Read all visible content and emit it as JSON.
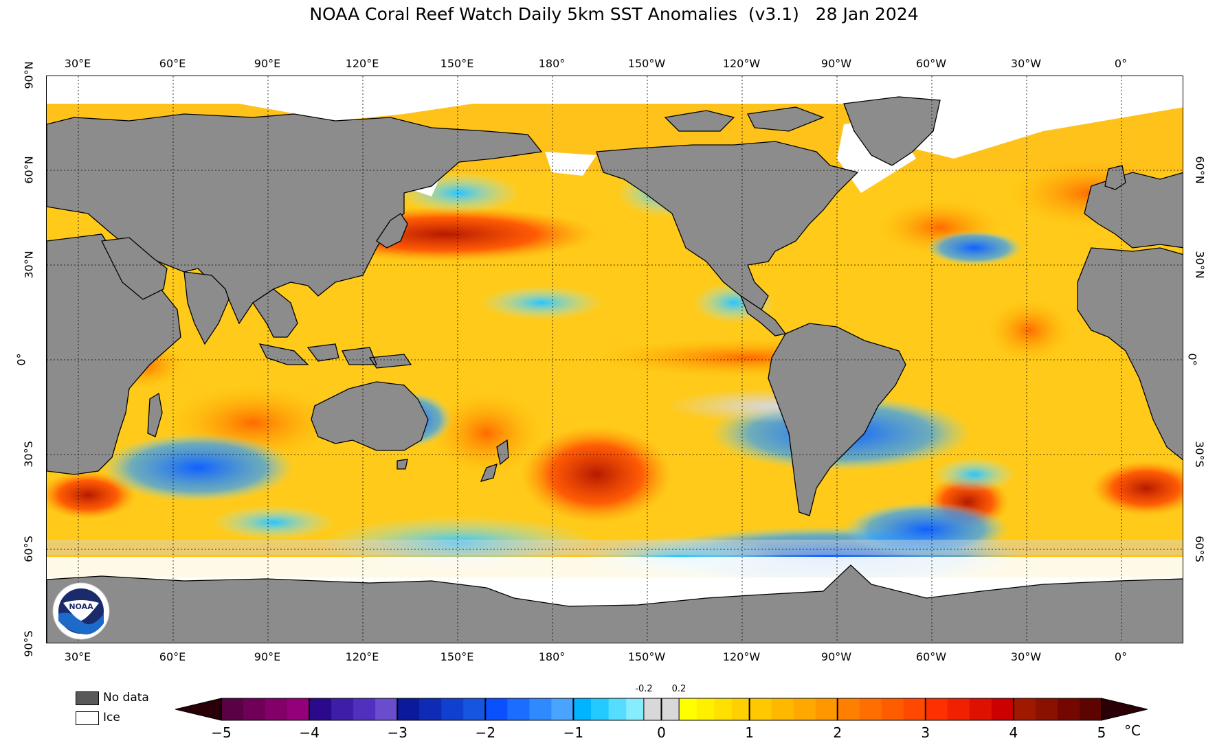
{
  "title": "NOAA Coral Reef Watch Daily 5km SST Anomalies  (v3.1)   28 Jan 2024",
  "map": {
    "longitude_labels": [
      "30°E",
      "60°E",
      "90°E",
      "120°E",
      "150°E",
      "180°",
      "150°W",
      "120°W",
      "90°W",
      "60°W",
      "30°W",
      "0°"
    ],
    "latitude_labels_left": [
      "90°N",
      "60°N",
      "30°N",
      "0°",
      "30°S",
      "60°S",
      "90°S"
    ],
    "latitude_labels_right": [
      "60°N",
      "30°N",
      "0°",
      "30°S",
      "60°S"
    ],
    "land_color": "#8c8c8c",
    "ice_color": "#ffffff",
    "logo": "noaa-logo"
  },
  "legend": {
    "no_data_label": "No data",
    "no_data_color": "#595959",
    "ice_label": "Ice",
    "ice_color": "#ffffff"
  },
  "colorbar": {
    "unit": "°C",
    "tick_labels": [
      "−5",
      "−4",
      "−3",
      "−2",
      "−1",
      "0",
      "1",
      "2",
      "3",
      "4",
      "5"
    ],
    "small_labels": [
      "-0.2",
      "0.2"
    ],
    "min_arrow_color": "#2a0008",
    "max_arrow_color": "#2a0006",
    "segments": [
      {
        "from": -5,
        "to": -4,
        "colors": [
          "#5a0045",
          "#6e0058",
          "#820068",
          "#94007a"
        ]
      },
      {
        "from": -4,
        "to": -3,
        "colors": [
          "#2a0a8a",
          "#3c1ea8",
          "#5030bf",
          "#6a4dcc"
        ]
      },
      {
        "from": -3,
        "to": -2,
        "colors": [
          "#0a1a9a",
          "#0d2bb5",
          "#1040cf",
          "#1555e0"
        ]
      },
      {
        "from": -2,
        "to": -1,
        "colors": [
          "#0a50ff",
          "#1a6dff",
          "#2f8aff",
          "#4aa3ff"
        ]
      },
      {
        "from": -1,
        "to": -0.2,
        "colors": [
          "#00b4ff",
          "#22caff",
          "#55dcff",
          "#88ecff"
        ]
      },
      {
        "from": -0.2,
        "to": 0,
        "colors": [
          "#d8d8d8"
        ]
      },
      {
        "from": 0,
        "to": 0.2,
        "colors": [
          "#d8d8d8"
        ]
      },
      {
        "from": 0.2,
        "to": 1,
        "colors": [
          "#ffff00",
          "#fff000",
          "#ffe000",
          "#ffd000"
        ]
      },
      {
        "from": 1,
        "to": 2,
        "colors": [
          "#ffc800",
          "#ffb800",
          "#ffa800",
          "#ff9800"
        ]
      },
      {
        "from": 2,
        "to": 3,
        "colors": [
          "#ff8000",
          "#ff6e00",
          "#ff5c00",
          "#ff4800"
        ]
      },
      {
        "from": 3,
        "to": 4,
        "colors": [
          "#ff3000",
          "#f02000",
          "#de1000",
          "#cc0000"
        ]
      },
      {
        "from": 4,
        "to": 5,
        "colors": [
          "#a01800",
          "#8a1000",
          "#740800",
          "#5e0400"
        ]
      }
    ]
  }
}
